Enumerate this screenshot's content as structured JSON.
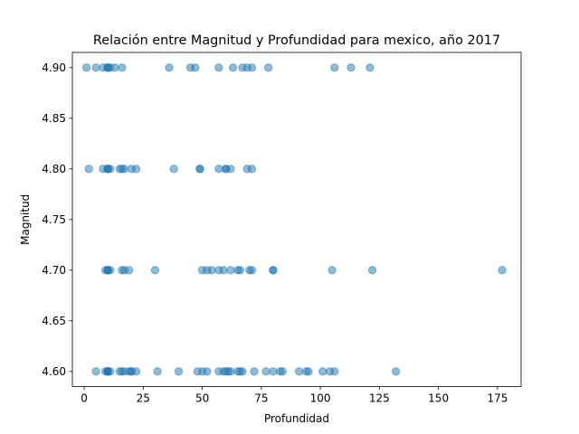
{
  "chart_data": {
    "type": "scatter",
    "title": "Relación entre Magnitud y Profundidad para mexico, año 2017",
    "xlabel": "Profundidad",
    "ylabel": "Magnitud",
    "xlim": [
      -5,
      185
    ],
    "ylim": [
      4.585,
      4.915
    ],
    "x_ticks": [
      0,
      25,
      50,
      75,
      100,
      125,
      150,
      175
    ],
    "x_tick_labels": [
      "0",
      "25",
      "50",
      "75",
      "100",
      "125",
      "150",
      "175"
    ],
    "y_ticks": [
      4.6,
      4.65,
      4.7,
      4.75,
      4.8,
      4.85,
      4.9
    ],
    "y_tick_labels": [
      "4.60",
      "4.65",
      "4.70",
      "4.75",
      "4.80",
      "4.85",
      "4.90"
    ],
    "grid": false,
    "marker_color": "#1f77b4",
    "marker_alpha": 0.5,
    "series": [
      {
        "points": [
          [
            1,
            4.9
          ],
          [
            5,
            4.9
          ],
          [
            8,
            4.9
          ],
          [
            10,
            4.9
          ],
          [
            10,
            4.9
          ],
          [
            10,
            4.9
          ],
          [
            11,
            4.9
          ],
          [
            13,
            4.9
          ],
          [
            16,
            4.9
          ],
          [
            36,
            4.9
          ],
          [
            45,
            4.9
          ],
          [
            47,
            4.9
          ],
          [
            57,
            4.9
          ],
          [
            63,
            4.9
          ],
          [
            67,
            4.9
          ],
          [
            69,
            4.9
          ],
          [
            71,
            4.9
          ],
          [
            78,
            4.9
          ],
          [
            106,
            4.9
          ],
          [
            113,
            4.9
          ],
          [
            121,
            4.9
          ],
          [
            2,
            4.8
          ],
          [
            8,
            4.8
          ],
          [
            10,
            4.8
          ],
          [
            10,
            4.8
          ],
          [
            10,
            4.8
          ],
          [
            11,
            4.8
          ],
          [
            15,
            4.8
          ],
          [
            16,
            4.8
          ],
          [
            17,
            4.8
          ],
          [
            20,
            4.8
          ],
          [
            22,
            4.8
          ],
          [
            38,
            4.8
          ],
          [
            49,
            4.8
          ],
          [
            49,
            4.8
          ],
          [
            57,
            4.8
          ],
          [
            60,
            4.8
          ],
          [
            60,
            4.8
          ],
          [
            62,
            4.8
          ],
          [
            69,
            4.8
          ],
          [
            71,
            4.8
          ],
          [
            9,
            4.7
          ],
          [
            10,
            4.7
          ],
          [
            10,
            4.7
          ],
          [
            10,
            4.7
          ],
          [
            11,
            4.7
          ],
          [
            16,
            4.7
          ],
          [
            17,
            4.7
          ],
          [
            19,
            4.7
          ],
          [
            30,
            4.7
          ],
          [
            50,
            4.7
          ],
          [
            52,
            4.7
          ],
          [
            54,
            4.7
          ],
          [
            57,
            4.7
          ],
          [
            59,
            4.7
          ],
          [
            62,
            4.7
          ],
          [
            65,
            4.7
          ],
          [
            66,
            4.7
          ],
          [
            70,
            4.7
          ],
          [
            71,
            4.7
          ],
          [
            80,
            4.7
          ],
          [
            80,
            4.7
          ],
          [
            105,
            4.7
          ],
          [
            122,
            4.7
          ],
          [
            177,
            4.7
          ],
          [
            5,
            4.6
          ],
          [
            9,
            4.6
          ],
          [
            10,
            4.6
          ],
          [
            10,
            4.6
          ],
          [
            10,
            4.6
          ],
          [
            10,
            4.6
          ],
          [
            11,
            4.6
          ],
          [
            15,
            4.6
          ],
          [
            16,
            4.6
          ],
          [
            17,
            4.6
          ],
          [
            19,
            4.6
          ],
          [
            20,
            4.6
          ],
          [
            20,
            4.6
          ],
          [
            22,
            4.6
          ],
          [
            31,
            4.6
          ],
          [
            40,
            4.6
          ],
          [
            48,
            4.6
          ],
          [
            50,
            4.6
          ],
          [
            52,
            4.6
          ],
          [
            57,
            4.6
          ],
          [
            59,
            4.6
          ],
          [
            60,
            4.6
          ],
          [
            61,
            4.6
          ],
          [
            62,
            4.6
          ],
          [
            65,
            4.6
          ],
          [
            66,
            4.6
          ],
          [
            67,
            4.6
          ],
          [
            72,
            4.6
          ],
          [
            77,
            4.6
          ],
          [
            80,
            4.6
          ],
          [
            83,
            4.6
          ],
          [
            84,
            4.6
          ],
          [
            91,
            4.6
          ],
          [
            94,
            4.6
          ],
          [
            95,
            4.6
          ],
          [
            101,
            4.6
          ],
          [
            104,
            4.6
          ],
          [
            106,
            4.6
          ],
          [
            132,
            4.6
          ]
        ]
      }
    ]
  }
}
